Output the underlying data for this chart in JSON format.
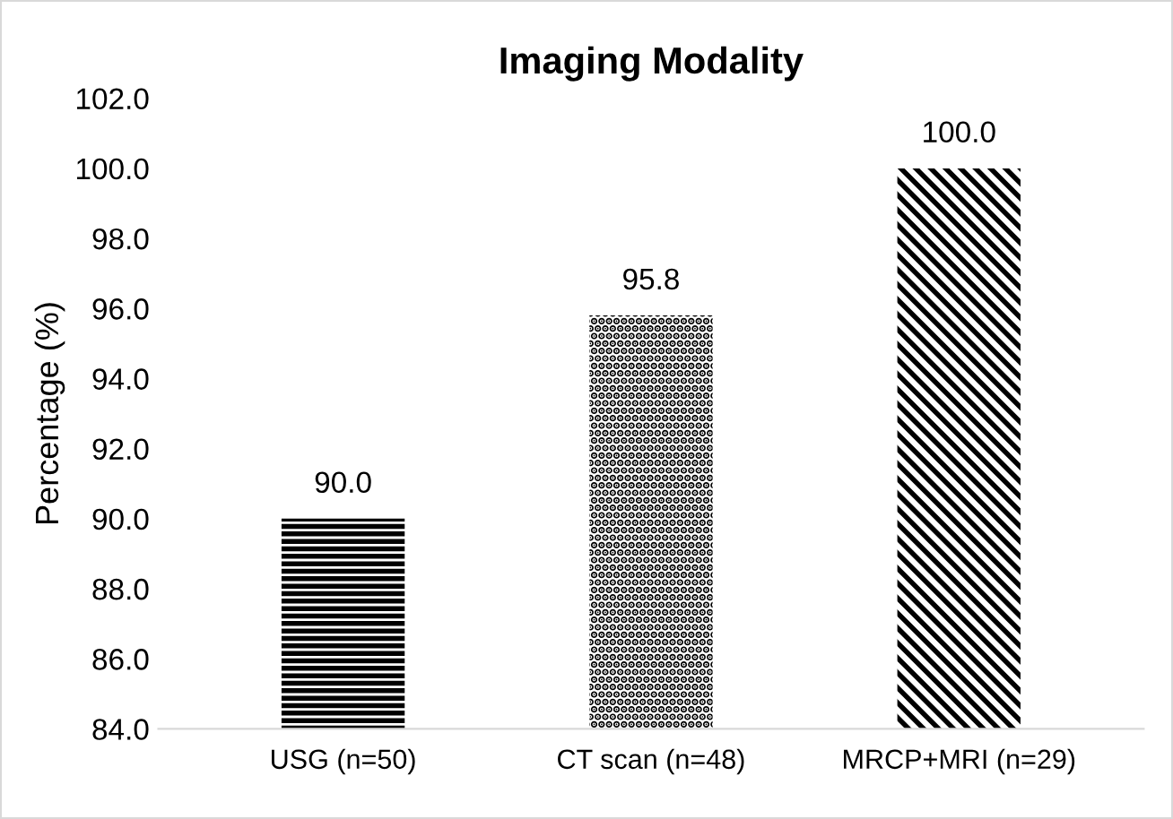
{
  "chart_data": {
    "type": "bar",
    "title": "Imaging Modality",
    "ylabel": "Percentage (%)",
    "categories": [
      "USG (n=50)",
      "CT scan (n=48)",
      "MRCP+MRI (n=29)"
    ],
    "values": [
      90.0,
      95.8,
      100.0
    ],
    "color": "#000000",
    "value_labels": [
      "90.0",
      "95.8",
      "100.0"
    ],
    "ylim": [
      84,
      102
    ],
    "yticks": [
      {
        "value": 84,
        "label": "84.0"
      },
      {
        "value": 86,
        "label": "86.0"
      },
      {
        "value": 88,
        "label": "88.0"
      },
      {
        "value": 90,
        "label": "90.0"
      },
      {
        "value": 92,
        "label": "92.0"
      },
      {
        "value": 94,
        "label": "94.0"
      },
      {
        "value": 96,
        "label": "96.0"
      },
      {
        "value": 98,
        "label": "98.0"
      },
      {
        "value": 100,
        "label": "100.0"
      },
      {
        "value": 102,
        "label": "102.0"
      }
    ],
    "grid": false,
    "legend": false
  }
}
